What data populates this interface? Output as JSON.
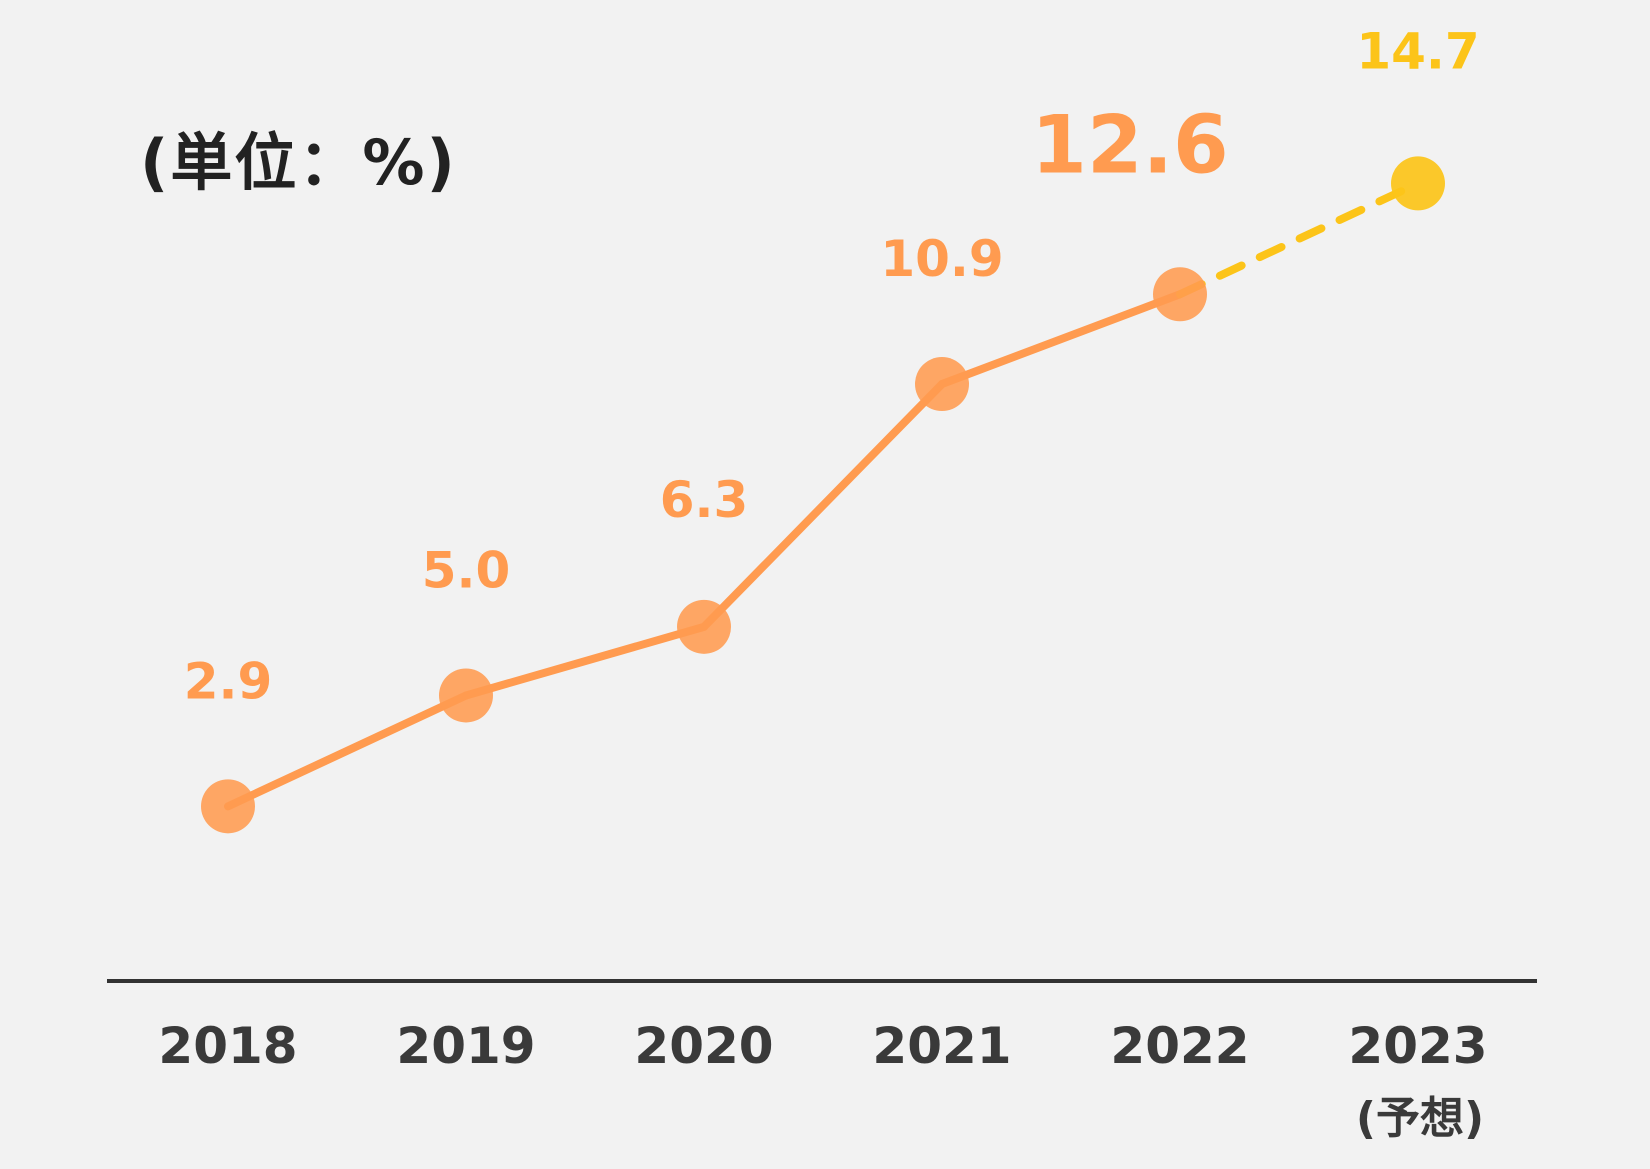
{
  "unit_label": "(単位：%)",
  "chart_data": {
    "type": "line",
    "title": "",
    "xlabel": "",
    "ylabel": "",
    "unit": "%",
    "categories": [
      "2018",
      "2019",
      "2020",
      "2021",
      "2022",
      "2023"
    ],
    "category_notes": [
      "",
      "",
      "",
      "",
      "",
      "(予想)"
    ],
    "series": [
      {
        "values": [
          2.9,
          5.0,
          6.3,
          10.9,
          12.6,
          14.7
        ],
        "labels": [
          "2.9",
          "5.0",
          "6.3",
          "10.9",
          "12.6",
          "14.7"
        ],
        "forecast_from_index": 4
      }
    ],
    "ylim": [
      -2.0,
      17.0
    ],
    "grid": false,
    "legend": "none",
    "colors": {
      "actual": "#ff9b50",
      "forecast": "#fcc419",
      "axis": "#333333",
      "tick_label": "#3a3a3a"
    },
    "emphasized_label_index": 4
  }
}
